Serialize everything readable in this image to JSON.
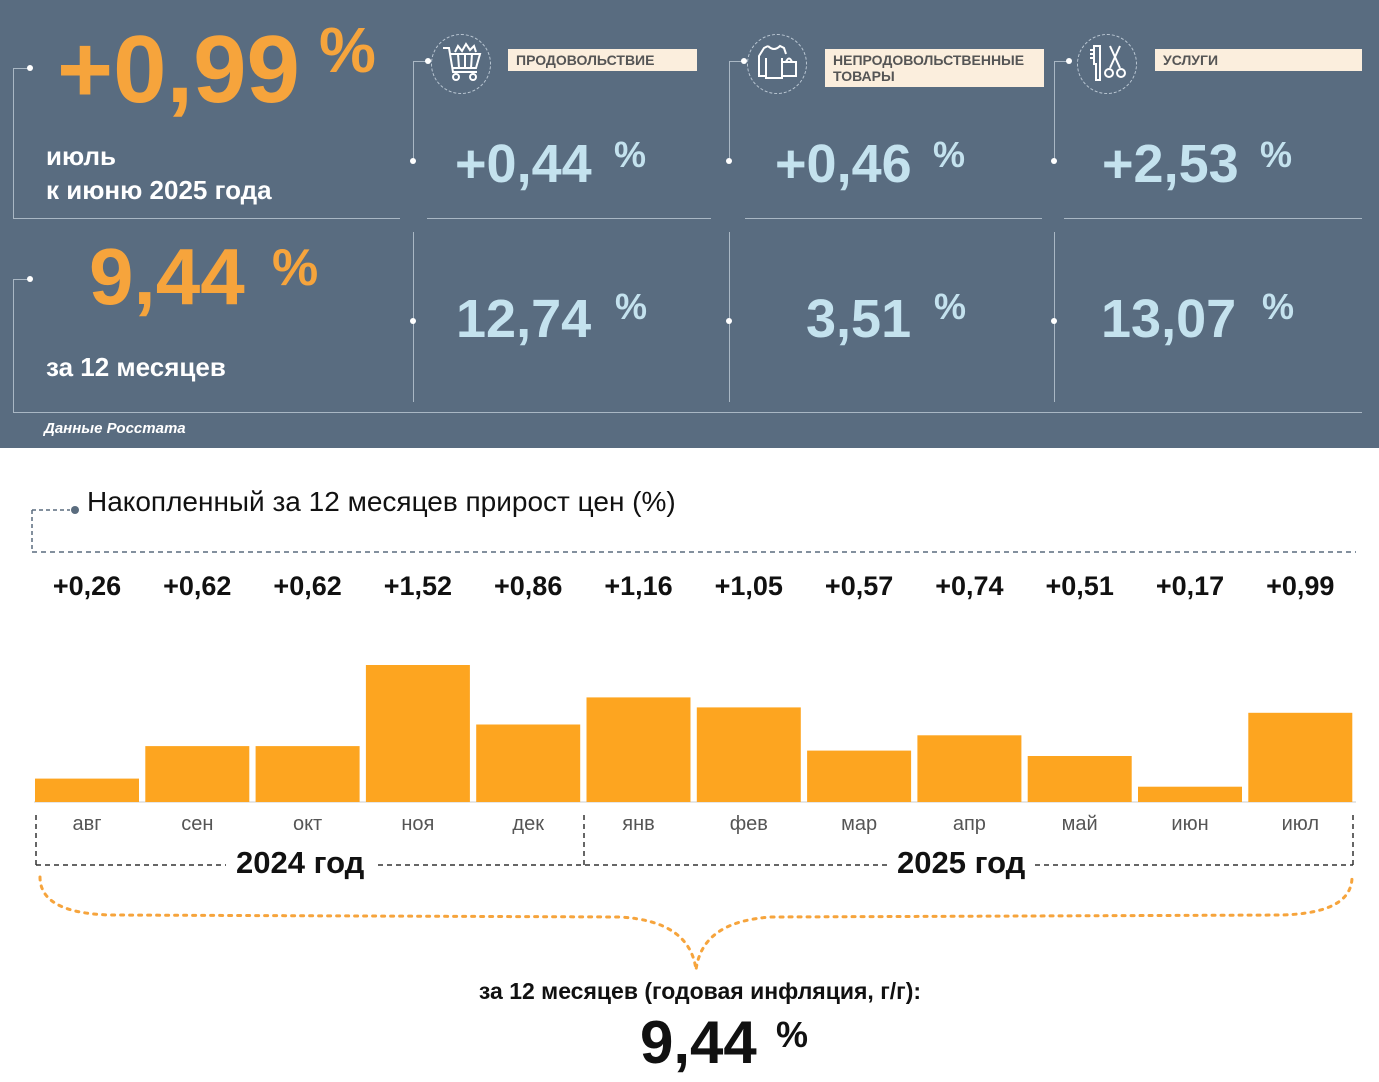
{
  "summary": {
    "monthly_value": "+0,99",
    "pct_sign": "%",
    "monthly_caption_1": "июль",
    "monthly_caption_2": "к июню 2025 года",
    "annual_value": "9,44",
    "annual_caption": "за 12 месяцев",
    "source": "Данные Росстата"
  },
  "categories": [
    {
      "label": "ПРОДОВОЛЬСТВИЕ",
      "icon": "shopping-cart-icon",
      "monthly": "+0,44",
      "annual": "12,74"
    },
    {
      "label": "НЕПРОДОВОЛЬСТВЕННЫЕ ТОВАРЫ",
      "icon": "clothes-bag-icon",
      "monthly": "+0,46",
      "annual": "3,51"
    },
    {
      "label": "УСЛУГИ",
      "icon": "comb-scissors-icon",
      "monthly": "+2,53",
      "annual": "13,07"
    }
  ],
  "colors": {
    "panel": "#596c80",
    "accent": "#f6a43c",
    "light_value": "#c4e2ee",
    "bar": "#fda520"
  },
  "chart_data": {
    "type": "bar",
    "title": "Накопленный за 12 месяцев прирост цен (%)",
    "categories": [
      "авг",
      "сен",
      "окт",
      "ноя",
      "дек",
      "янв",
      "фев",
      "мар",
      "апр",
      "май",
      "июн",
      "июл"
    ],
    "values": [
      0.26,
      0.62,
      0.62,
      1.52,
      0.86,
      1.16,
      1.05,
      0.57,
      0.74,
      0.51,
      0.17,
      0.99
    ],
    "value_labels": [
      "+0,26",
      "+0,62",
      "+0,62",
      "+1,52",
      "+0,86",
      "+1,16",
      "+1,05",
      "+0,57",
      "+0,74",
      "+0,51",
      "+0,17",
      "+0,99"
    ],
    "year_groups": [
      {
        "label": "2024 год",
        "months": 5
      },
      {
        "label": "2025 год",
        "months": 7
      }
    ],
    "ylim": [
      0,
      1.52
    ],
    "grid": false,
    "legend": "none",
    "total_caption": "за 12 месяцев (годовая инфляция, г/г):",
    "total_value": "9,44",
    "total_pct": "%"
  }
}
